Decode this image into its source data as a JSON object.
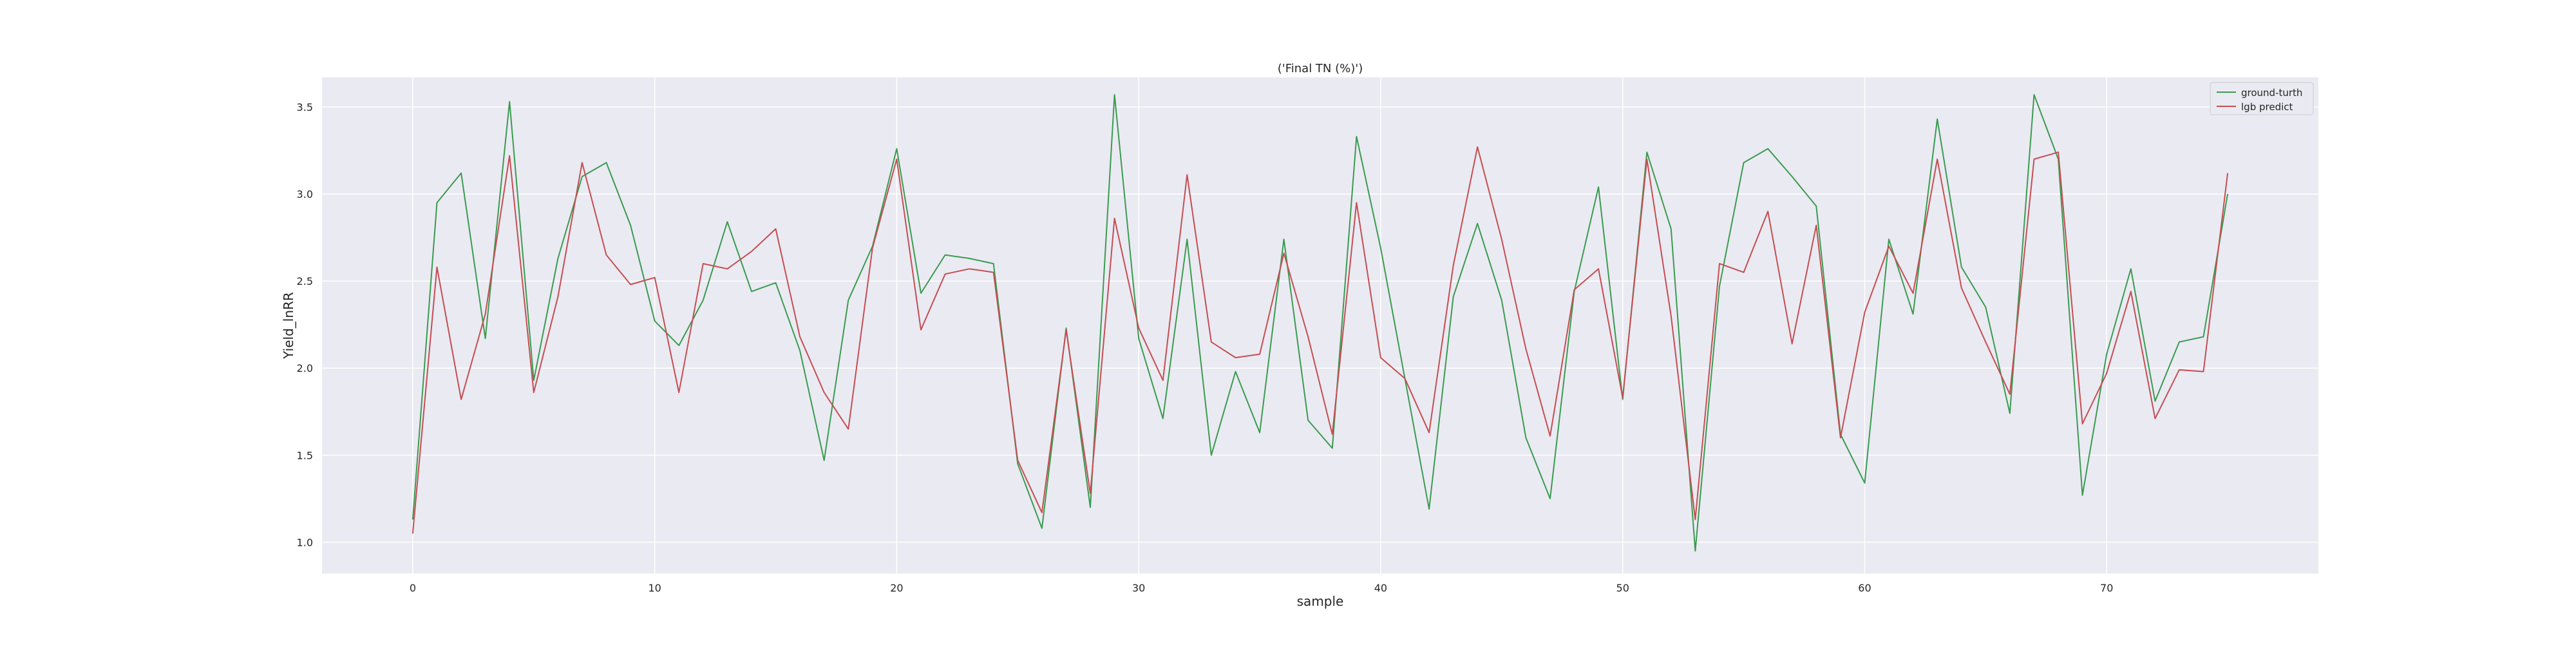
{
  "chart_data": {
    "type": "line",
    "title": "('Final TN (%)')",
    "xlabel": "sample",
    "ylabel": "Yield_lnRR",
    "xlim": [
      -3.75,
      78.75
    ],
    "ylim": [
      0.82,
      3.67
    ],
    "xticks": [
      0,
      10,
      20,
      30,
      40,
      50,
      60,
      70
    ],
    "yticks": [
      1.0,
      1.5,
      2.0,
      2.5,
      3.0,
      3.5
    ],
    "grid": true,
    "legend_position": "top-right",
    "x": [
      0,
      1,
      2,
      3,
      4,
      5,
      6,
      7,
      8,
      9,
      10,
      11,
      12,
      13,
      14,
      15,
      16,
      17,
      18,
      19,
      20,
      21,
      22,
      23,
      24,
      25,
      26,
      27,
      28,
      29,
      30,
      31,
      32,
      33,
      34,
      35,
      36,
      37,
      38,
      39,
      40,
      41,
      42,
      43,
      44,
      45,
      46,
      47,
      48,
      49,
      50,
      51,
      52,
      53,
      54,
      55,
      56,
      57,
      58,
      59,
      60,
      61,
      62,
      63,
      64,
      65,
      66,
      67,
      68,
      69,
      70,
      71,
      72,
      73,
      74,
      75
    ],
    "series": [
      {
        "name": "ground-turth",
        "color": "#3a9b50",
        "values": [
          1.13,
          2.95,
          3.12,
          2.17,
          3.53,
          1.93,
          2.63,
          3.1,
          3.18,
          2.82,
          2.27,
          2.13,
          2.39,
          2.84,
          2.44,
          2.49,
          2.1,
          1.47,
          2.39,
          2.7,
          3.26,
          2.43,
          2.65,
          2.63,
          2.6,
          1.45,
          1.08,
          2.23,
          1.2,
          3.57,
          2.17,
          1.71,
          2.74,
          1.5,
          1.98,
          1.63,
          2.74,
          1.7,
          1.54,
          3.33,
          2.69,
          1.94,
          1.19,
          2.41,
          2.83,
          2.39,
          1.6,
          1.25,
          2.44,
          3.04,
          1.82,
          3.24,
          2.8,
          0.95,
          2.47,
          3.18,
          3.26,
          3.1,
          2.93,
          1.62,
          1.34,
          2.74,
          2.31,
          3.43,
          2.58,
          2.35,
          1.74,
          3.57,
          3.2,
          1.27,
          2.08,
          2.57,
          1.81,
          2.15,
          2.18,
          3.0
        ]
      },
      {
        "name": "lgb predict",
        "color": "#c44e52",
        "values": [
          1.05,
          2.58,
          1.82,
          2.31,
          3.22,
          1.86,
          2.41,
          3.18,
          2.65,
          2.48,
          2.52,
          1.86,
          2.6,
          2.57,
          2.67,
          2.8,
          2.18,
          1.86,
          1.65,
          2.69,
          3.2,
          2.22,
          2.54,
          2.57,
          2.55,
          1.47,
          1.17,
          2.22,
          1.28,
          2.86,
          2.23,
          1.93,
          3.11,
          2.15,
          2.06,
          2.08,
          2.66,
          2.18,
          1.62,
          2.95,
          2.06,
          1.94,
          1.63,
          2.59,
          3.27,
          2.74,
          2.11,
          1.61,
          2.45,
          2.57,
          1.83,
          3.2,
          2.3,
          1.13,
          2.6,
          2.55,
          2.9,
          2.14,
          2.82,
          1.6,
          2.32,
          2.7,
          2.43,
          3.2,
          2.46,
          2.15,
          1.85,
          3.2,
          3.24,
          1.68,
          1.97,
          2.44,
          1.71,
          1.99,
          1.98,
          3.12
        ]
      }
    ]
  }
}
